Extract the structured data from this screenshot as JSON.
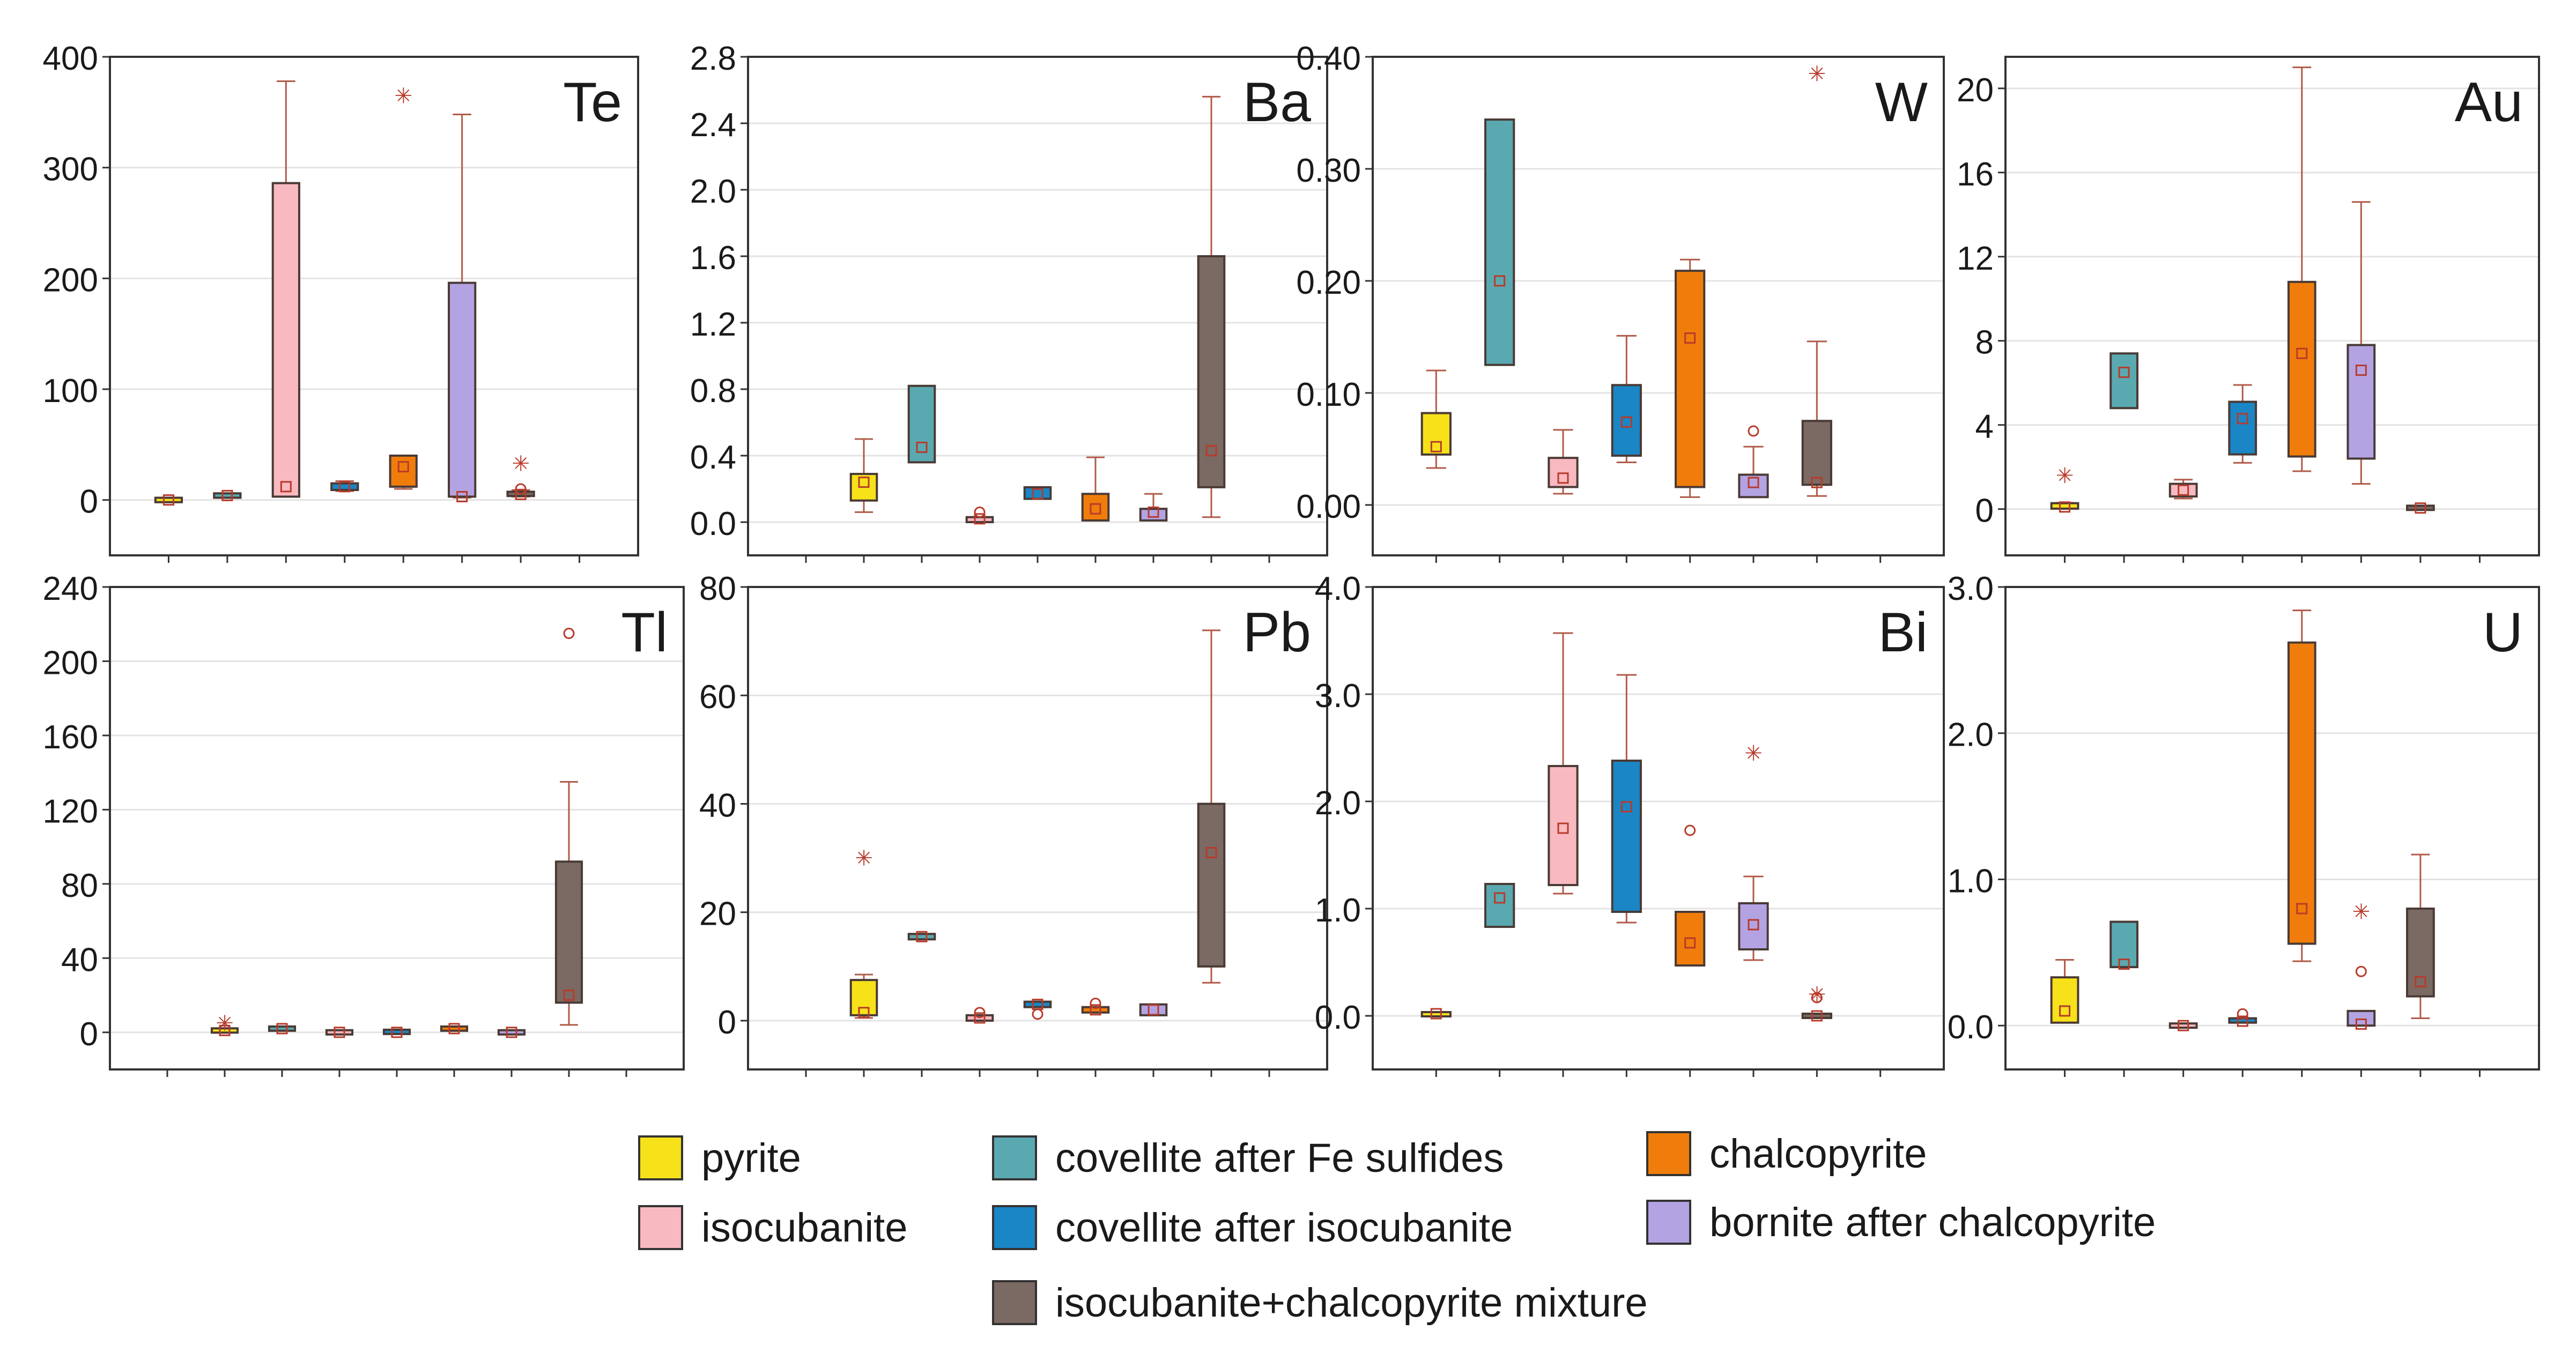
{
  "minerals": [
    {
      "key": "pyrite",
      "label": "pyrite",
      "color": "#f7e21a"
    },
    {
      "key": "cov_fe",
      "label": "covellite after Fe sulfides",
      "color": "#5aa9b0"
    },
    {
      "key": "chalco",
      "label": "chalcopyrite",
      "color": "#f07d0b"
    },
    {
      "key": "isocub",
      "label": "isocubanite",
      "color": "#f9b9c0"
    },
    {
      "key": "cov_iso",
      "label": "covellite after isocubanite",
      "color": "#1a86c6"
    },
    {
      "key": "bornite",
      "label": "bornite after chalcopyrite",
      "color": "#b4a3e3"
    },
    {
      "key": "mix",
      "label": "isocubanite+chalcopyrite mixture",
      "color": "#7b6963"
    }
  ],
  "chart_data": [
    {
      "type": "box",
      "element": "Te",
      "ylim": [
        -50,
        400
      ],
      "ticks": [
        0,
        100,
        200,
        300,
        400
      ],
      "tick_labels": [
        "0",
        "100",
        "200",
        "300",
        "400"
      ],
      "boxes": [
        {
          "group": 1,
          "mineral": "pyrite",
          "q1": -2,
          "q3": 2,
          "min": -2,
          "max": 2,
          "mean": 0,
          "outliers": []
        },
        {
          "group": 2,
          "mineral": "cov_fe",
          "q1": 2,
          "q3": 6,
          "min": 2,
          "max": 6,
          "mean": 4,
          "outliers": []
        },
        {
          "group": 3,
          "mineral": "isocub",
          "q1": 3,
          "q3": 286,
          "min": 3,
          "max": 378,
          "mean": 12,
          "outliers": []
        },
        {
          "group": 4,
          "mineral": "cov_iso",
          "q1": 9,
          "q3": 15,
          "min": 8,
          "max": 17,
          "mean": 12,
          "outliers": []
        },
        {
          "group": 5,
          "mineral": "chalco",
          "q1": 12,
          "q3": 40,
          "min": 10,
          "max": 40,
          "mean": 30,
          "outliers": [
            {
              "value": 365,
              "marker": "star"
            }
          ]
        },
        {
          "group": 6,
          "mineral": "bornite",
          "q1": 3,
          "q3": 196,
          "min": 2,
          "max": 348,
          "mean": 3,
          "outliers": []
        },
        {
          "group": 7,
          "mineral": "mix",
          "q1": 4,
          "q3": 7,
          "min": 3,
          "max": 9,
          "mean": 5,
          "outliers": [
            {
              "value": 10,
              "marker": "circle"
            },
            {
              "value": 33,
              "marker": "star"
            }
          ]
        }
      ]
    },
    {
      "type": "box",
      "element": "Ba",
      "ylim": [
        -0.2,
        2.8
      ],
      "ticks": [
        0,
        0.4,
        0.8,
        1.2,
        1.6,
        2.0,
        2.4,
        2.8
      ],
      "tick_labels": [
        "0.0",
        "0.4",
        "0.8",
        "1.2",
        "1.6",
        "2.0",
        "2.4",
        "2.8"
      ],
      "boxes": [
        {
          "group": 2,
          "mineral": "pyrite",
          "q1": 0.13,
          "q3": 0.29,
          "min": 0.06,
          "max": 0.5,
          "mean": 0.24,
          "outliers": []
        },
        {
          "group": 3,
          "mineral": "cov_fe",
          "q1": 0.36,
          "q3": 0.82,
          "min": 0.36,
          "max": 0.82,
          "mean": 0.45,
          "outliers": []
        },
        {
          "group": 4,
          "mineral": "isocub",
          "q1": 0.0,
          "q3": 0.03,
          "min": 0.0,
          "max": 0.03,
          "mean": 0.02,
          "outliers": [
            {
              "value": 0.06,
              "marker": "circle"
            }
          ]
        },
        {
          "group": 5,
          "mineral": "cov_iso",
          "q1": 0.14,
          "q3": 0.21,
          "min": 0.14,
          "max": 0.21,
          "mean": 0.17,
          "outliers": []
        },
        {
          "group": 6,
          "mineral": "chalco",
          "q1": 0.01,
          "q3": 0.17,
          "min": 0.01,
          "max": 0.39,
          "mean": 0.08,
          "outliers": []
        },
        {
          "group": 7,
          "mineral": "bornite",
          "q1": 0.01,
          "q3": 0.08,
          "min": 0.01,
          "max": 0.17,
          "mean": 0.06,
          "outliers": []
        },
        {
          "group": 8,
          "mineral": "mix",
          "q1": 0.21,
          "q3": 1.6,
          "min": 0.03,
          "max": 2.56,
          "mean": 0.43,
          "outliers": []
        }
      ]
    },
    {
      "type": "box",
      "element": "W",
      "ylim": [
        -0.045,
        0.4
      ],
      "ticks": [
        0,
        0.1,
        0.2,
        0.3,
        0.4
      ],
      "tick_labels": [
        "0.00",
        "0.10",
        "0.20",
        "0.30",
        "0.40"
      ],
      "boxes": [
        {
          "group": 1,
          "mineral": "pyrite",
          "q1": 0.045,
          "q3": 0.082,
          "min": 0.033,
          "max": 0.12,
          "mean": 0.052,
          "outliers": []
        },
        {
          "group": 2,
          "mineral": "cov_fe",
          "q1": 0.125,
          "q3": 0.344,
          "min": 0.125,
          "max": 0.344,
          "mean": 0.2,
          "outliers": []
        },
        {
          "group": 3,
          "mineral": "isocub",
          "q1": 0.016,
          "q3": 0.042,
          "min": 0.01,
          "max": 0.067,
          "mean": 0.024,
          "outliers": []
        },
        {
          "group": 4,
          "mineral": "cov_iso",
          "q1": 0.044,
          "q3": 0.107,
          "min": 0.038,
          "max": 0.151,
          "mean": 0.074,
          "outliers": []
        },
        {
          "group": 5,
          "mineral": "chalco",
          "q1": 0.016,
          "q3": 0.209,
          "min": 0.007,
          "max": 0.219,
          "mean": 0.149,
          "outliers": []
        },
        {
          "group": 6,
          "mineral": "bornite",
          "q1": 0.007,
          "q3": 0.027,
          "min": 0.007,
          "max": 0.052,
          "mean": 0.02,
          "outliers": [
            {
              "value": 0.066,
              "marker": "circle"
            }
          ]
        },
        {
          "group": 7,
          "mineral": "mix",
          "q1": 0.018,
          "q3": 0.075,
          "min": 0.008,
          "max": 0.146,
          "mean": 0.02,
          "outliers": [
            {
              "value": 0.385,
              "marker": "star"
            }
          ]
        }
      ]
    },
    {
      "type": "box",
      "element": "Au",
      "ylim": [
        -2.2,
        21.5
      ],
      "ticks": [
        0,
        4,
        8,
        12,
        16,
        20
      ],
      "tick_labels": [
        "0",
        "4",
        "8",
        "12",
        "16",
        "20"
      ],
      "boxes": [
        {
          "group": 1,
          "mineral": "pyrite",
          "q1": 0.02,
          "q3": 0.28,
          "min": 0.02,
          "max": 0.3,
          "mean": 0.1,
          "outliers": [
            {
              "value": 1.6,
              "marker": "star"
            }
          ]
        },
        {
          "group": 2,
          "mineral": "cov_fe",
          "q1": 4.8,
          "q3": 7.4,
          "min": 4.8,
          "max": 7.4,
          "mean": 6.5,
          "outliers": []
        },
        {
          "group": 3,
          "mineral": "isocub",
          "q1": 0.6,
          "q3": 1.2,
          "min": 0.5,
          "max": 1.4,
          "mean": 0.9,
          "outliers": []
        },
        {
          "group": 4,
          "mineral": "cov_iso",
          "q1": 2.6,
          "q3": 5.1,
          "min": 2.2,
          "max": 5.9,
          "mean": 4.3,
          "outliers": []
        },
        {
          "group": 5,
          "mineral": "chalco",
          "q1": 2.5,
          "q3": 10.8,
          "min": 1.8,
          "max": 21.0,
          "mean": 7.4,
          "outliers": []
        },
        {
          "group": 6,
          "mineral": "bornite",
          "q1": 2.4,
          "q3": 7.8,
          "min": 1.2,
          "max": 14.6,
          "mean": 6.6,
          "outliers": []
        },
        {
          "group": 7,
          "mineral": "mix",
          "q1": 0.0,
          "q3": 0.12,
          "min": 0.0,
          "max": 0.12,
          "mean": 0.05,
          "outliers": []
        }
      ]
    },
    {
      "type": "box",
      "element": "Tl",
      "ylim": [
        -20,
        240
      ],
      "ticks": [
        0,
        40,
        80,
        120,
        160,
        200,
        240
      ],
      "tick_labels": [
        "0",
        "40",
        "80",
        "120",
        "160",
        "200",
        "240"
      ],
      "boxes": [
        {
          "group": 2,
          "mineral": "pyrite",
          "q1": 0,
          "q3": 2,
          "min": 0,
          "max": 2,
          "mean": 1,
          "outliers": [
            {
              "value": 5,
              "marker": "star"
            }
          ]
        },
        {
          "group": 3,
          "mineral": "cov_fe",
          "q1": 1,
          "q3": 3,
          "min": 1,
          "max": 3,
          "mean": 2,
          "outliers": []
        },
        {
          "group": 4,
          "mineral": "isocub",
          "q1": -1,
          "q3": 1,
          "min": -1,
          "max": 1,
          "mean": 0,
          "outliers": []
        },
        {
          "group": 5,
          "mineral": "cov_iso",
          "q1": -0.5,
          "q3": 1,
          "min": -0.5,
          "max": 1,
          "mean": 0,
          "outliers": []
        },
        {
          "group": 6,
          "mineral": "chalco",
          "q1": 1,
          "q3": 3,
          "min": 1,
          "max": 3,
          "mean": 2,
          "outliers": []
        },
        {
          "group": 7,
          "mineral": "bornite",
          "q1": -1,
          "q3": 1,
          "min": -1,
          "max": 1,
          "mean": 0,
          "outliers": []
        },
        {
          "group": 8,
          "mineral": "mix",
          "q1": 16,
          "q3": 92,
          "min": 4,
          "max": 135,
          "mean": 20,
          "outliers": [
            {
              "value": 215,
              "marker": "circle"
            }
          ]
        }
      ]
    },
    {
      "type": "box",
      "element": "Pb",
      "ylim": [
        -9,
        80
      ],
      "ticks": [
        0,
        20,
        40,
        60,
        80
      ],
      "tick_labels": [
        "0",
        "20",
        "40",
        "60",
        "80"
      ],
      "boxes": [
        {
          "group": 2,
          "mineral": "pyrite",
          "q1": 1,
          "q3": 7.5,
          "min": 0.5,
          "max": 8.5,
          "mean": 1.5,
          "outliers": [
            {
              "value": 30,
              "marker": "star"
            }
          ]
        },
        {
          "group": 3,
          "mineral": "cov_fe",
          "q1": 15,
          "q3": 16,
          "min": 15,
          "max": 16,
          "mean": 15.5,
          "outliers": []
        },
        {
          "group": 4,
          "mineral": "isocub",
          "q1": 0,
          "q3": 1,
          "min": 0,
          "max": 1,
          "mean": 0.5,
          "outliers": [
            {
              "value": 1.5,
              "marker": "circle"
            }
          ]
        },
        {
          "group": 5,
          "mineral": "cov_iso",
          "q1": 2.5,
          "q3": 3.5,
          "min": 2.5,
          "max": 3.5,
          "mean": 3,
          "outliers": [
            {
              "value": 1.2,
              "marker": "circle"
            }
          ]
        },
        {
          "group": 6,
          "mineral": "chalco",
          "q1": 1.5,
          "q3": 2.5,
          "min": 1.5,
          "max": 2.5,
          "mean": 2,
          "outliers": [
            {
              "value": 3.2,
              "marker": "circle"
            }
          ]
        },
        {
          "group": 7,
          "mineral": "bornite",
          "q1": 1,
          "q3": 3,
          "min": 1,
          "max": 3,
          "mean": 2,
          "outliers": []
        },
        {
          "group": 8,
          "mineral": "mix",
          "q1": 10,
          "q3": 40,
          "min": 7,
          "max": 72,
          "mean": 31,
          "outliers": []
        }
      ]
    },
    {
      "type": "box",
      "element": "Bi",
      "ylim": [
        -0.5,
        4.0
      ],
      "ticks": [
        0,
        1,
        2,
        3,
        4
      ],
      "tick_labels": [
        "0.0",
        "1.0",
        "2.0",
        "3.0",
        "4.0"
      ],
      "boxes": [
        {
          "group": 1,
          "mineral": "pyrite",
          "q1": 0.0,
          "q3": 0.03,
          "min": 0.0,
          "max": 0.03,
          "mean": 0.02,
          "outliers": []
        },
        {
          "group": 2,
          "mineral": "cov_fe",
          "q1": 0.83,
          "q3": 1.23,
          "min": 0.83,
          "max": 1.23,
          "mean": 1.1,
          "outliers": []
        },
        {
          "group": 3,
          "mineral": "isocub",
          "q1": 1.22,
          "q3": 2.33,
          "min": 1.14,
          "max": 3.57,
          "mean": 1.75,
          "outliers": []
        },
        {
          "group": 4,
          "mineral": "cov_iso",
          "q1": 0.97,
          "q3": 2.38,
          "min": 0.87,
          "max": 3.18,
          "mean": 1.95,
          "outliers": []
        },
        {
          "group": 5,
          "mineral": "chalco",
          "q1": 0.47,
          "q3": 0.97,
          "min": 0.47,
          "max": 0.97,
          "mean": 0.68,
          "outliers": [
            {
              "value": 1.73,
              "marker": "circle"
            }
          ]
        },
        {
          "group": 6,
          "mineral": "bornite",
          "q1": 0.62,
          "q3": 1.05,
          "min": 0.52,
          "max": 1.3,
          "mean": 0.85,
          "outliers": [
            {
              "value": 2.45,
              "marker": "star"
            }
          ]
        },
        {
          "group": 7,
          "mineral": "mix",
          "q1": -0.01,
          "q3": 0.01,
          "min": -0.01,
          "max": 0.01,
          "mean": 0.0,
          "outliers": [
            {
              "value": 0.2,
              "marker": "star"
            },
            {
              "value": 0.17,
              "marker": "circle"
            }
          ]
        }
      ]
    },
    {
      "type": "box",
      "element": "U",
      "ylim": [
        -0.3,
        3.0
      ],
      "ticks": [
        0,
        1,
        2,
        3
      ],
      "tick_labels": [
        "0.0",
        "1.0",
        "2.0",
        "3.0"
      ],
      "boxes": [
        {
          "group": 1,
          "mineral": "pyrite",
          "q1": 0.02,
          "q3": 0.33,
          "min": 0.02,
          "max": 0.45,
          "mean": 0.1,
          "outliers": []
        },
        {
          "group": 2,
          "mineral": "cov_fe",
          "q1": 0.4,
          "q3": 0.71,
          "min": 0.4,
          "max": 0.71,
          "mean": 0.42,
          "outliers": []
        },
        {
          "group": 3,
          "mineral": "isocub",
          "q1": -0.01,
          "q3": 0.01,
          "min": -0.01,
          "max": 0.01,
          "mean": 0.0,
          "outliers": []
        },
        {
          "group": 4,
          "mineral": "cov_iso",
          "q1": 0.02,
          "q3": 0.05,
          "min": 0.02,
          "max": 0.05,
          "mean": 0.03,
          "outliers": [
            {
              "value": 0.08,
              "marker": "circle"
            }
          ]
        },
        {
          "group": 5,
          "mineral": "chalco",
          "q1": 0.56,
          "q3": 2.62,
          "min": 0.44,
          "max": 2.84,
          "mean": 0.8,
          "outliers": []
        },
        {
          "group": 6,
          "mineral": "bornite",
          "q1": 0.0,
          "q3": 0.1,
          "min": 0.0,
          "max": 0.1,
          "mean": 0.01,
          "outliers": [
            {
              "value": 0.37,
              "marker": "circle"
            },
            {
              "value": 0.78,
              "marker": "star"
            }
          ]
        },
        {
          "group": 7,
          "mineral": "mix",
          "q1": 0.2,
          "q3": 0.8,
          "min": 0.05,
          "max": 1.17,
          "mean": 0.3,
          "outliers": []
        }
      ]
    }
  ]
}
